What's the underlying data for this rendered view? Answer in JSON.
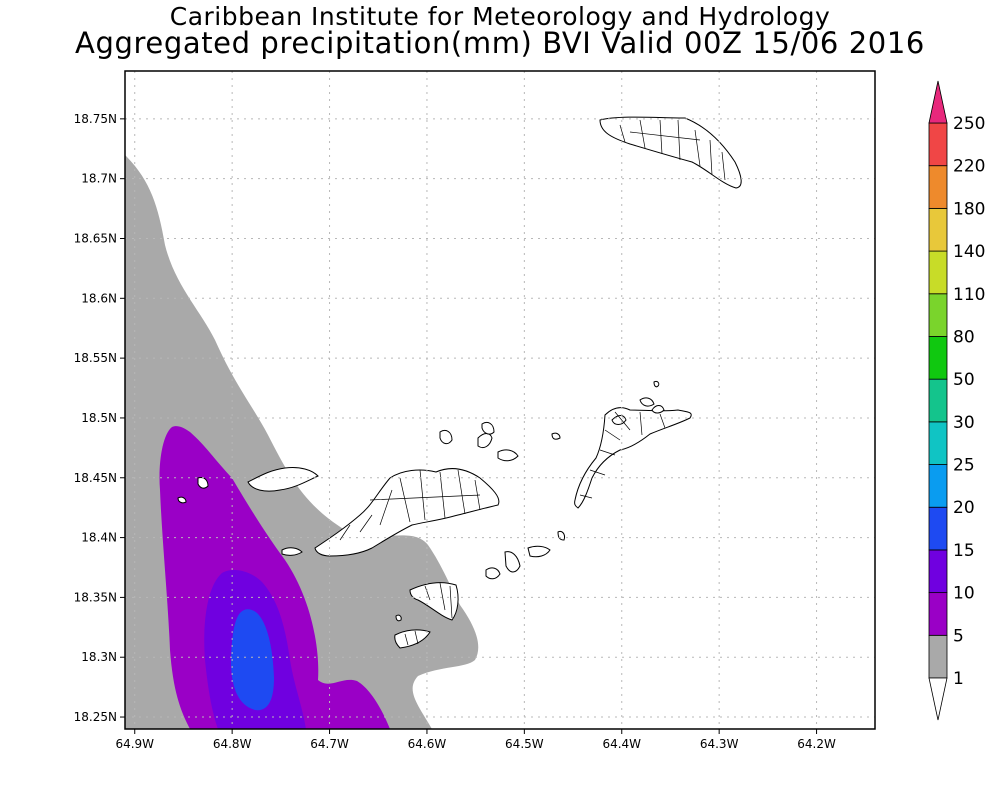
{
  "title_line1": "Caribbean Institute for Meteorology and Hydrology",
  "title_line2": "Aggregated precipitation(mm) BVI Valid 00Z 15/06 2016",
  "map": {
    "lon_range": [
      -64.91,
      -64.14
    ],
    "lat_range": [
      18.24,
      18.79
    ],
    "grid": "dotted",
    "lon_ticks": [
      "64.9W",
      "64.8W",
      "64.7W",
      "64.6W",
      "64.5W",
      "64.4W",
      "64.3W",
      "64.2W"
    ],
    "lat_ticks": [
      "18.75N",
      "18.7N",
      "18.65N",
      "18.6N",
      "18.55N",
      "18.5N",
      "18.45N",
      "18.4N",
      "18.35N",
      "18.3N",
      "18.25N"
    ],
    "fields": [
      {
        "level": "1-5 mm",
        "color": "#a9a9a9"
      },
      {
        "level": "5-10 mm",
        "color": "#9a00c6"
      },
      {
        "level": "10-15 mm",
        "color": "#7000e0"
      },
      {
        "level": "15-20 mm",
        "color": "#1e4af2"
      }
    ],
    "land_color": "#ffffff"
  },
  "colorbar": {
    "levels": [
      "1",
      "5",
      "10",
      "15",
      "20",
      "25",
      "30",
      "50",
      "80",
      "110",
      "140",
      "180",
      "220",
      "250"
    ],
    "colors": [
      "#a9a9a9",
      "#9a00c6",
      "#7000e0",
      "#1e4af2",
      "#0a9cf0",
      "#10c4c4",
      "#14c48c",
      "#10c810",
      "#7ad42c",
      "#c8dc28",
      "#e8c83a",
      "#ee8a2c",
      "#f04646",
      "#e8287c"
    ]
  }
}
